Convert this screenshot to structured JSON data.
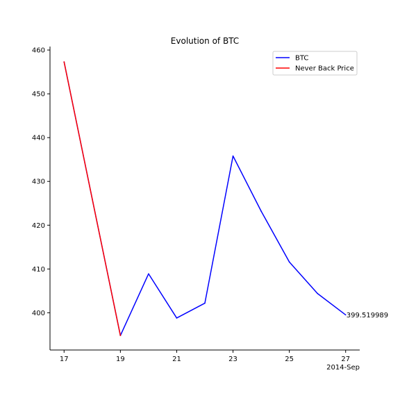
{
  "chart_data": {
    "type": "line",
    "title": "Evolution of BTC",
    "xlabel": "",
    "ylabel": "",
    "x": [
      "2014-09-17",
      "2014-09-18",
      "2014-09-19",
      "2014-09-20",
      "2014-09-21",
      "2014-09-22",
      "2014-09-23",
      "2014-09-24",
      "2014-09-25",
      "2014-09-26",
      "2014-09-27"
    ],
    "x_tick_labels": [
      "17",
      "19",
      "21",
      "23",
      "25",
      "27"
    ],
    "x_tick_values": [
      "2014-09-17",
      "2014-09-19",
      "2014-09-21",
      "2014-09-23",
      "2014-09-25",
      "2014-09-27"
    ],
    "x_offset_label": "2014-Sep",
    "xlim": [
      "2014-09-16.5",
      "2014-09-27.5"
    ],
    "ylim": [
      391.5,
      460.8
    ],
    "y_ticks": [
      400,
      410,
      420,
      430,
      440,
      450,
      460
    ],
    "series": [
      {
        "name": "BTC",
        "color": "#0000ff",
        "values": [
          457.3,
          426.0,
          394.8,
          408.9,
          398.8,
          402.2,
          435.8,
          423.2,
          411.6,
          404.4,
          399.52
        ]
      },
      {
        "name": "Never Back Price",
        "color": "#ff0000",
        "values": [
          457.3,
          426.0,
          394.8,
          null,
          null,
          null,
          null,
          null,
          null,
          null,
          null
        ]
      }
    ],
    "annotations": [
      {
        "text": "399.519989",
        "x": "2014-09-27",
        "y": 399.52
      }
    ],
    "legend": {
      "position": "top-right",
      "entries": [
        "BTC",
        "Never Back Price"
      ]
    },
    "grid": false
  }
}
